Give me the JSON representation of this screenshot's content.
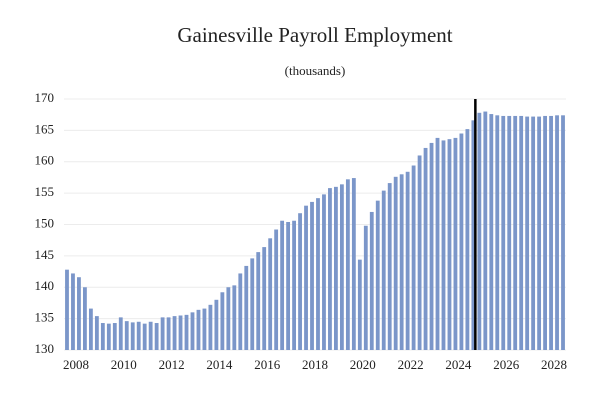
{
  "chart_data": {
    "type": "bar",
    "title": "Gainesville Payroll Employment",
    "subtitle": "(thousands)",
    "categories": [
      "2008",
      null,
      null,
      null,
      null,
      null,
      null,
      null,
      "2010",
      null,
      null,
      null,
      null,
      null,
      null,
      null,
      "2012",
      null,
      null,
      null,
      null,
      null,
      null,
      null,
      "2014",
      null,
      null,
      null,
      null,
      null,
      null,
      null,
      "2016",
      null,
      null,
      null,
      null,
      null,
      null,
      null,
      "2018",
      null,
      null,
      null,
      null,
      null,
      null,
      null,
      "2020",
      null,
      null,
      null,
      null,
      null,
      null,
      null,
      "2022",
      null,
      null,
      null,
      null,
      null,
      null,
      null,
      "2024",
      null,
      null,
      null,
      null,
      null,
      null,
      null,
      "2026",
      null,
      null,
      null,
      null,
      null,
      null,
      null,
      "2028",
      null,
      null,
      null
    ],
    "values": [
      142.8,
      142.2,
      141.6,
      140.0,
      136.6,
      135.4,
      134.3,
      134.2,
      134.3,
      135.2,
      134.6,
      134.4,
      134.5,
      134.2,
      134.5,
      134.3,
      135.2,
      135.2,
      135.4,
      135.5,
      135.6,
      136.0,
      136.4,
      136.6,
      137.2,
      138.0,
      139.2,
      140.0,
      140.3,
      142.2,
      143.4,
      144.6,
      145.6,
      146.4,
      147.8,
      149.2,
      150.6,
      150.4,
      150.6,
      151.8,
      153.0,
      153.6,
      154.2,
      154.8,
      155.8,
      156.0,
      156.4,
      157.2,
      157.4,
      144.4,
      149.8,
      152.0,
      153.8,
      155.4,
      156.6,
      157.6,
      158.0,
      158.4,
      159.4,
      161.0,
      162.2,
      163.0,
      163.8,
      163.4,
      163.6,
      163.8,
      164.5,
      165.2,
      166.6,
      167.8,
      168.0,
      167.6,
      167.4,
      167.3,
      167.3,
      167.3,
      167.3,
      167.2,
      167.2,
      167.2,
      167.3,
      167.3,
      167.4,
      167.4
    ],
    "color": "#7b96c9",
    "ylim": [
      130,
      170
    ],
    "yticks": [
      130,
      135,
      140,
      145,
      150,
      155,
      160,
      165,
      170
    ],
    "grid": true
  }
}
